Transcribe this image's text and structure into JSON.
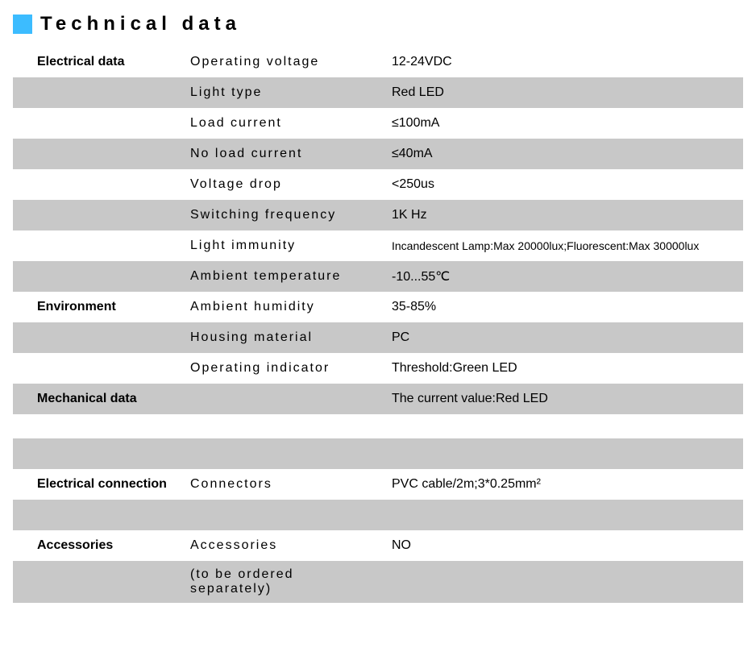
{
  "header": {
    "title": "Technical data",
    "accent_color": "#3cbcff"
  },
  "table": {
    "row_shaded_color": "#c8c8c8",
    "rows": [
      {
        "category": "Electrical data",
        "param": "Operating voltage",
        "value": "12-24VDC",
        "shaded": false
      },
      {
        "category": "",
        "param": "Light type",
        "value": "Red LED",
        "shaded": true
      },
      {
        "category": "",
        "param": "Load current",
        "value": "≤100mA",
        "shaded": false
      },
      {
        "category": "",
        "param": "No load current",
        "value": "≤40mA",
        "shaded": true
      },
      {
        "category": "",
        "param": "Voltage drop",
        "value": "<250us",
        "shaded": false
      },
      {
        "category": "",
        "param": "Switching frequency",
        "value": "1K Hz",
        "shaded": true
      },
      {
        "category": "",
        "param": "Light immunity",
        "value": "Incandescent Lamp:Max 20000lux;Fluorescent:Max 30000lux",
        "shaded": false,
        "small": true
      },
      {
        "category": "",
        "param": "Ambient temperature",
        "value": "-10...55℃",
        "shaded": true
      },
      {
        "category": "Environment",
        "param": "Ambient humidity",
        "value": "35-85%",
        "shaded": false
      },
      {
        "category": "",
        "param": "Housing material",
        "value": "PC",
        "shaded": true
      },
      {
        "category": "",
        "param": "Operating indicator",
        "value": "Threshold:Green LED",
        "shaded": false
      },
      {
        "category": "Mechanical data",
        "param": "",
        "value": "The current value:Red LED",
        "shaded": true
      }
    ],
    "rows2": [
      {
        "category": "",
        "param": "",
        "value": "",
        "shaded": true
      },
      {
        "category": "Electrical connection",
        "param": "Connectors",
        "value": "PVC cable/2m;3*0.25mm²",
        "shaded": false
      },
      {
        "category": "",
        "param": "",
        "value": "",
        "shaded": true
      },
      {
        "category": "Accessories",
        "param": "Accessories",
        "value": "NO",
        "shaded": false
      },
      {
        "category": "",
        "param": "(to be ordered separately)",
        "value": "",
        "shaded": true
      }
    ]
  }
}
